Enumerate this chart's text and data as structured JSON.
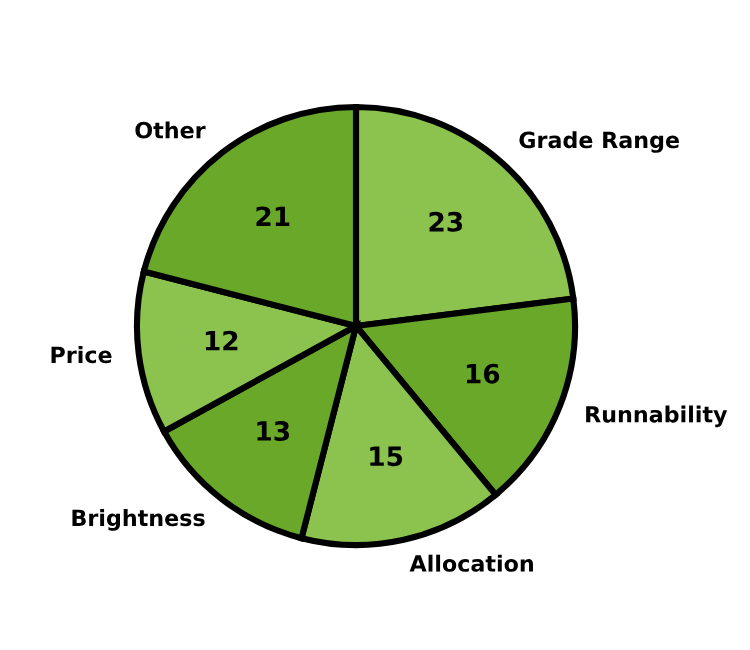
{
  "chart_data": {
    "type": "pie",
    "categories": [
      "Grade Range",
      "Runnability",
      "Allocation",
      "Brightness",
      "Price",
      "Other"
    ],
    "values": [
      23,
      16,
      15,
      13,
      12,
      21
    ],
    "colors": [
      "#8cc34f",
      "#6aa82a",
      "#8cc34f",
      "#6aa82a",
      "#8cc34f",
      "#6aa82a"
    ],
    "data_labels": true
  }
}
